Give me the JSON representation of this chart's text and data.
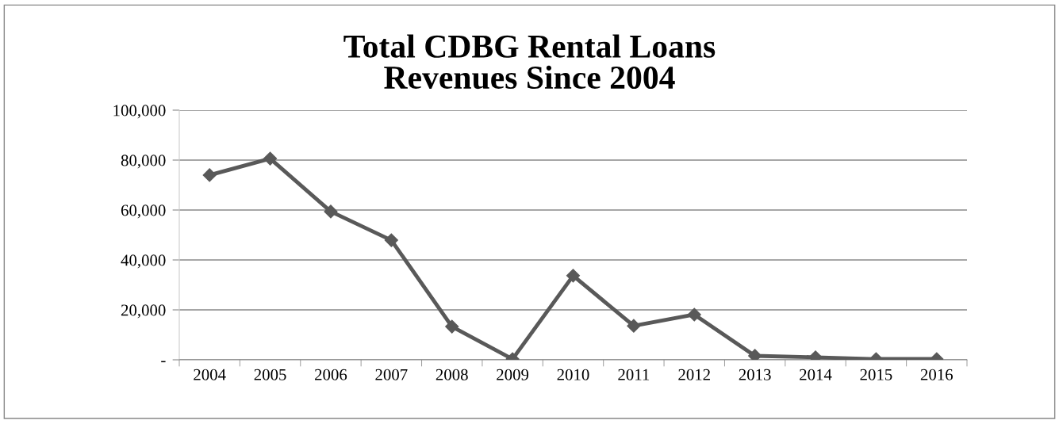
{
  "chart_data": {
    "type": "line",
    "title": "Total CDBG Rental Loans\nRevenues Since 2004",
    "categories": [
      "2004",
      "2005",
      "2006",
      "2007",
      "2008",
      "2009",
      "2010",
      "2011",
      "2012",
      "2013",
      "2014",
      "2015",
      "2016"
    ],
    "series": [
      {
        "color": "#595959",
        "values": [
          74000,
          80600,
          59400,
          47900,
          13300,
          300,
          33700,
          13600,
          18100,
          1600,
          1000,
          300,
          300
        ]
      }
    ],
    "ylim": [
      0,
      100000
    ],
    "yticks": [
      {
        "value": 0,
        "label": "-"
      },
      {
        "value": 20000,
        "label": "20,000"
      },
      {
        "value": 40000,
        "label": "40,000"
      },
      {
        "value": 60000,
        "label": "60,000"
      },
      {
        "value": 80000,
        "label": "80,000"
      },
      {
        "value": 100000,
        "label": "100,000"
      }
    ],
    "grid": "y",
    "marker": "diamond",
    "line_style": "solid"
  }
}
